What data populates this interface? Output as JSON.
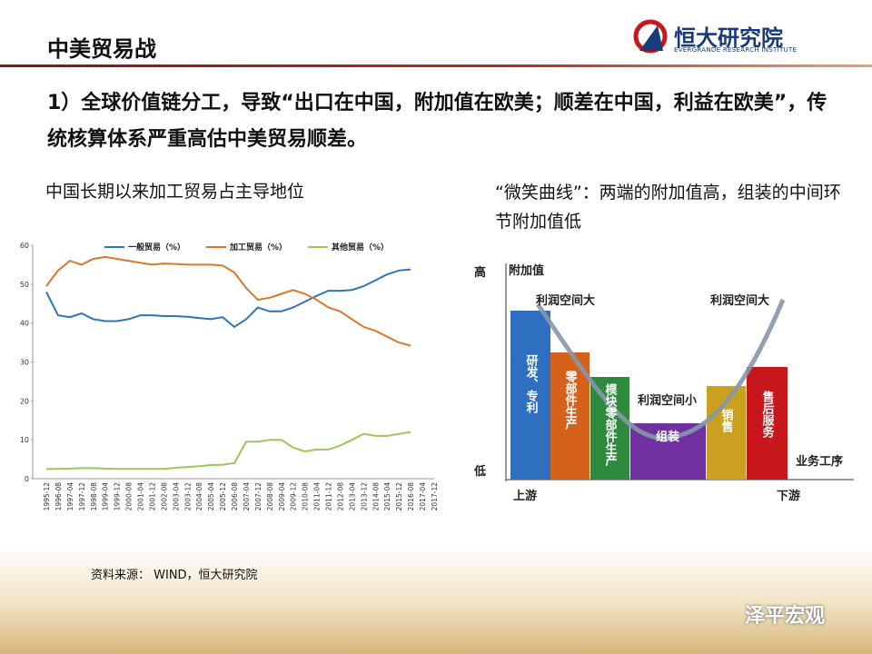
{
  "header": {
    "title": "中美贸易战",
    "logo": "恒大研究院",
    "logo_sub": "EVERGRANDE RESEARCH INSTITUTE"
  },
  "body": {
    "point": "1）全球价值链分工，导致“出口在中国，附加值在欧美；顺差在中国，利益在欧美”，传统核算体系严重高估中美贸易顺差。"
  },
  "left_caption": "中国长期以来加工贸易占主导地位",
  "right_caption": "“微笑曲线”：两端的附加值高，组装的中间环节附加值低",
  "chart_data": {
    "type": "line",
    "x": [
      "1995-12",
      "1996-08",
      "1997-04",
      "1997-12",
      "1998-08",
      "1999-04",
      "1999-12",
      "2000-08",
      "2001-04",
      "2001-12",
      "2002-08",
      "2003-04",
      "2003-12",
      "2004-08",
      "2005-04",
      "2005-12",
      "2006-08",
      "2007-04",
      "2007-12",
      "2008-08",
      "2009-04",
      "2009-12",
      "2010-08",
      "2011-04",
      "2011-12",
      "2012-08",
      "2013-04",
      "2013-12",
      "2014-08",
      "2015-04",
      "2015-12",
      "2016-08",
      "2017-04",
      "2017-12"
    ],
    "series": [
      {
        "name": "一般贸易（%）",
        "color": "#2e75b6",
        "values": [
          48,
          42,
          41.5,
          42.5,
          41,
          40.5,
          40.5,
          41,
          42,
          42,
          41.8,
          41.8,
          41.6,
          41.3,
          41,
          41.5,
          39,
          41,
          44,
          43,
          43,
          44,
          45.5,
          47,
          48.3,
          48.3,
          48.5,
          49.5,
          51,
          52.5,
          53.5,
          53.8,
          null,
          null
        ]
      },
      {
        "name": "加工贸易（%）",
        "color": "#d9782b",
        "values": [
          49.5,
          53.5,
          56,
          55,
          56.5,
          57,
          56.5,
          56,
          55.5,
          55,
          55.3,
          55.2,
          55,
          55,
          55,
          54.8,
          53,
          49,
          46,
          46.5,
          47.5,
          48.5,
          47.5,
          46,
          44,
          43,
          41,
          39,
          38,
          36.5,
          35,
          34.2,
          null,
          null
        ]
      },
      {
        "name": "其他贸易（%）",
        "color": "#9bc65a",
        "values": [
          2.5,
          2.5,
          2.6,
          2.7,
          2.7,
          2.6,
          2.5,
          2.5,
          2.5,
          2.5,
          2.5,
          2.8,
          3,
          3.2,
          3.5,
          3.6,
          4,
          9.5,
          9.5,
          10,
          10,
          8,
          7,
          7.5,
          7.5,
          8.5,
          10,
          11.5,
          11,
          11,
          11.5,
          12,
          null,
          null
        ]
      }
    ],
    "ylim": [
      0,
      60
    ],
    "yticks": [
      0,
      10,
      20,
      30,
      40,
      50,
      60
    ],
    "legend": "top"
  },
  "source": "资料来源： WIND，恒大研究院",
  "diagram": {
    "y_high": "高",
    "y_label": "附加值",
    "y_low": "低",
    "x_label": "业务工序",
    "upstream": "上游",
    "downstream": "下游",
    "profit_left": "利润空间大",
    "profit_right": "利润空间大",
    "profit_mid": "利润空间小",
    "stages": [
      "研发、专利",
      "零部件生产",
      "模块零部件生产",
      "组装",
      "销售",
      "售后服务"
    ]
  },
  "watermark": "泽平宏观"
}
